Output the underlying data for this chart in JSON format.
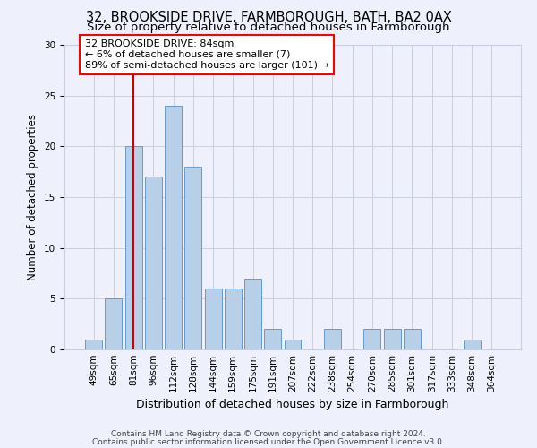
{
  "title1": "32, BROOKSIDE DRIVE, FARMBOROUGH, BATH, BA2 0AX",
  "title2": "Size of property relative to detached houses in Farmborough",
  "xlabel": "Distribution of detached houses by size in Farmborough",
  "ylabel": "Number of detached properties",
  "categories": [
    "49sqm",
    "65sqm",
    "81sqm",
    "96sqm",
    "112sqm",
    "128sqm",
    "144sqm",
    "159sqm",
    "175sqm",
    "191sqm",
    "207sqm",
    "222sqm",
    "238sqm",
    "254sqm",
    "270sqm",
    "285sqm",
    "301sqm",
    "317sqm",
    "333sqm",
    "348sqm",
    "364sqm"
  ],
  "values": [
    1,
    5,
    20,
    17,
    24,
    18,
    6,
    6,
    7,
    2,
    1,
    0,
    2,
    0,
    2,
    2,
    2,
    0,
    0,
    1,
    0
  ],
  "bar_color": "#b8cfe8",
  "bar_edgecolor": "#6699cc",
  "red_line_x": 2.0,
  "annotation_text": "32 BROOKSIDE DRIVE: 84sqm\n← 6% of detached houses are smaller (7)\n89% of semi-detached houses are larger (101) →",
  "annotation_box_color": "white",
  "annotation_box_edgecolor": "red",
  "red_line_color": "#cc0000",
  "ylim": [
    0,
    30
  ],
  "yticks": [
    0,
    5,
    10,
    15,
    20,
    25,
    30
  ],
  "footer1": "Contains HM Land Registry data © Crown copyright and database right 2024.",
  "footer2": "Contains public sector information licensed under the Open Government Licence v3.0.",
  "background_color": "#eef1fb",
  "plot_background": "#eef1fb",
  "grid_color": "#c8cfe0",
  "title1_fontsize": 10.5,
  "title2_fontsize": 9.5,
  "xlabel_fontsize": 9,
  "ylabel_fontsize": 8.5,
  "tick_fontsize": 7.5,
  "annotation_fontsize": 8,
  "footer_fontsize": 6.5
}
